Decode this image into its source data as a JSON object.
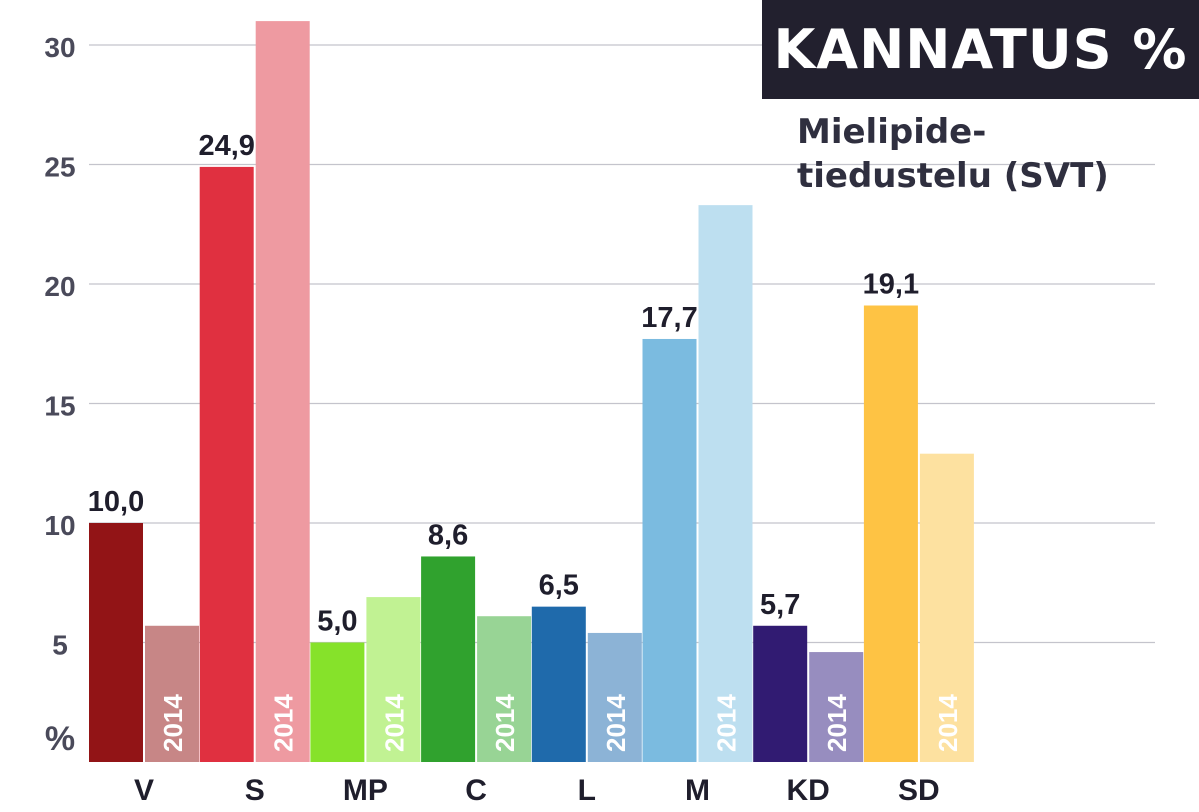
{
  "header": {
    "title": "KANNATUS %",
    "subtitle_line1": "Mielipide-",
    "subtitle_line2": "tiedustelu (SVT)"
  },
  "colors": {
    "title_bg": "#22202e",
    "title_fg": "#ffffff",
    "axis_text": "#4a4a5a",
    "label_text": "#1f1e2c",
    "gridline": "#c4c4cc"
  },
  "chart_data": {
    "type": "bar",
    "categories": [
      "V",
      "S",
      "MP",
      "C",
      "L",
      "M",
      "KD",
      "SD"
    ],
    "series": [
      {
        "values": [
          10.0,
          24.9,
          5.0,
          8.6,
          6.5,
          17.7,
          5.7,
          19.1
        ],
        "data_labels": [
          "10,0",
          "24,9",
          "5,0",
          "8,6",
          "6,5",
          "17,7",
          "5,7",
          "19,1"
        ],
        "colors": [
          "#921416",
          "#e03040",
          "#86e22a",
          "#30a22e",
          "#1f6aab",
          "#7bbbe0",
          "#311b72",
          "#fec344"
        ]
      },
      {
        "name": "2014",
        "values": [
          5.7,
          31.0,
          6.9,
          6.1,
          5.4,
          23.3,
          4.6,
          12.9
        ],
        "colors": [
          "#c78686",
          "#ee9aa1",
          "#c1f293",
          "#98d495",
          "#8cb3d6",
          "#bddff0",
          "#978dbf",
          "#fde1a0"
        ]
      }
    ],
    "y_axis": {
      "ticks": [
        5,
        10,
        15,
        20,
        25,
        30
      ],
      "tick_labels": [
        "5",
        "10",
        "15",
        "20",
        "25",
        "30"
      ],
      "unit_label": "%",
      "ylim": [
        0,
        31
      ]
    },
    "grid": true,
    "legend": "none"
  }
}
